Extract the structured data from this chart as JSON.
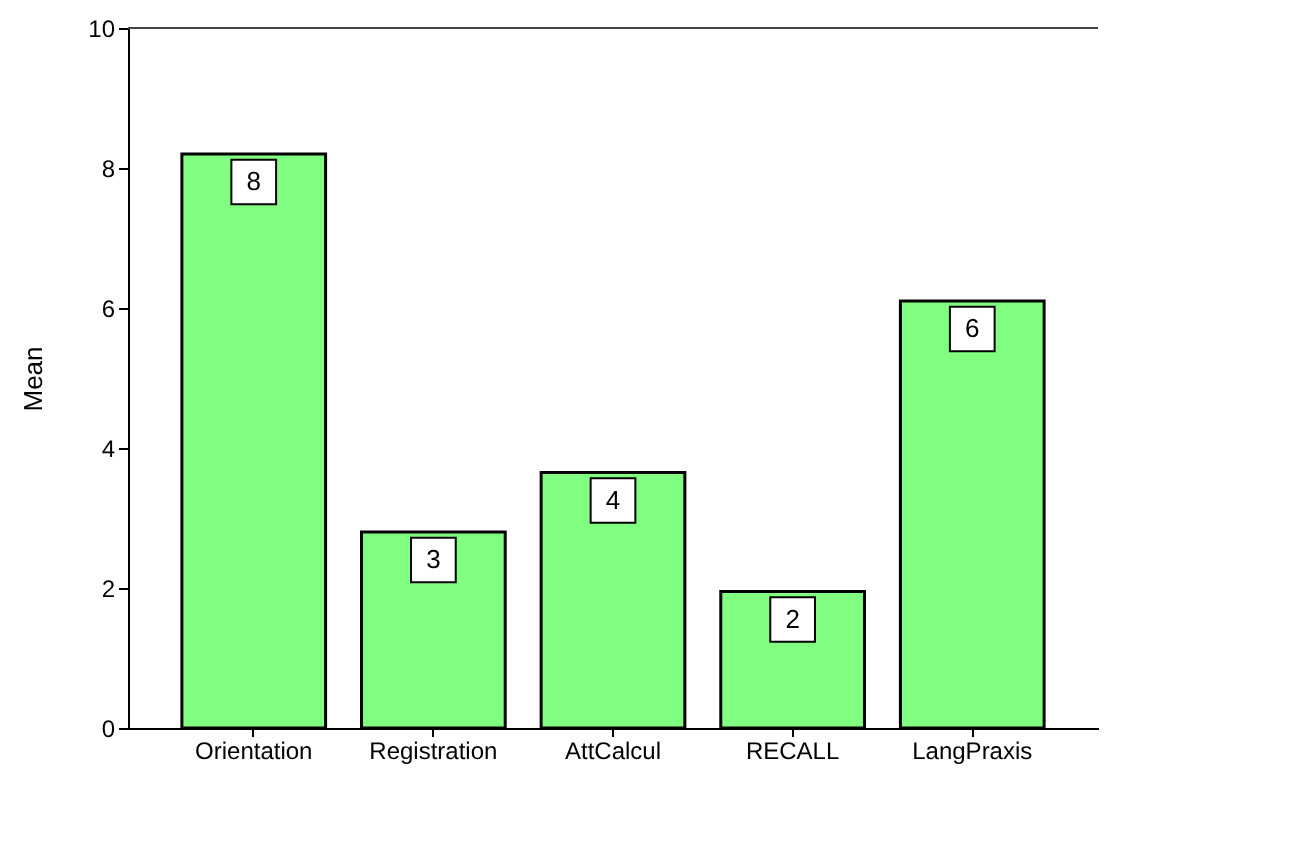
{
  "chart_data": {
    "type": "bar",
    "ylabel": "Mean",
    "categories": [
      "Orientation",
      "Registration",
      "AttCalcul",
      "RECALL",
      "LangPraxis"
    ],
    "values": [
      8.2,
      2.8,
      3.65,
      1.95,
      6.1
    ],
    "value_labels": [
      "8",
      "3",
      "4",
      "2",
      "6"
    ],
    "color": "#80ff80",
    "ylim": [
      0,
      10
    ],
    "yticks": [
      0,
      2,
      4,
      6,
      8,
      10
    ],
    "grid": false
  }
}
